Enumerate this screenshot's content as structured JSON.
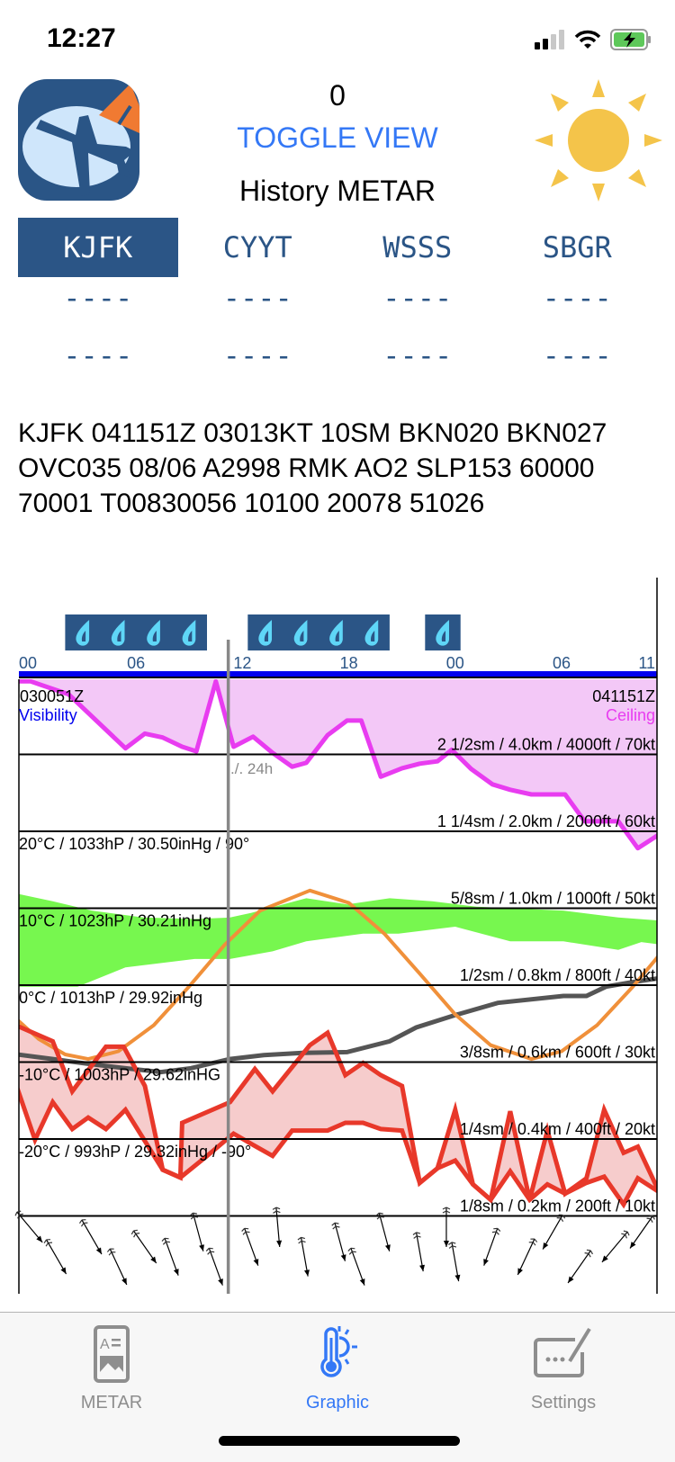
{
  "status_bar": {
    "time": "12:27",
    "signal_icon": "cellular-signal-icon",
    "wifi_icon": "wifi-icon",
    "battery_icon": "battery-charging-icon"
  },
  "header": {
    "counter": "0",
    "toggle_label": "TOGGLE VIEW",
    "title": "History METAR",
    "logo_icon": "airplane-globe-logo",
    "weather_icon": "sun-icon"
  },
  "stations": [
    {
      "code": "KJFK",
      "selected": true,
      "line1": "----",
      "line2": "----"
    },
    {
      "code": "CYYT",
      "selected": false,
      "line1": "----",
      "line2": "----"
    },
    {
      "code": "WSSS",
      "selected": false,
      "line1": "----",
      "line2": "----"
    },
    {
      "code": "SBGR",
      "selected": false,
      "line1": "----",
      "line2": "----"
    }
  ],
  "metar_text": "KJFK 041151Z 03013KT 10SM BKN020 BKN027 OVC035 08/06 A2998 RMK AO2 SLP153 60000 70001 T00830056 10100 20078 51026",
  "colors": {
    "accent": "#3478f6",
    "station": "#2b5586",
    "ceiling": "#e83cf0",
    "ceiling_fill": "#f3c8f7",
    "humidity": "#77f74f",
    "sun": "#f0903a",
    "pressure": "#555555",
    "temp": "#e8382a",
    "temp_fill": "#f6cccc",
    "rain_box": "#2b5586",
    "rain_drop": "#5fd6f7",
    "axis": "#0000ee",
    "cursor": "#888888"
  },
  "chart_data": {
    "type": "line",
    "x_unit": "hours UTC",
    "x_ticks": [
      {
        "h": 0,
        "label": "00"
      },
      {
        "h": 6,
        "label": "06"
      },
      {
        "h": 12,
        "label": "12"
      },
      {
        "h": 18,
        "label": "18"
      },
      {
        "h": 24,
        "label": "00"
      },
      {
        "h": 30,
        "label": "06"
      },
      {
        "h": 35,
        "label": "11"
      }
    ],
    "start_label": "030051Z",
    "end_label": "041151Z",
    "left_legend": "Visibility",
    "right_legend": "Ceiling",
    "cursor_label": "./. 24h",
    "cursor_h": 11.2,
    "rain_periods": [
      {
        "from": 2,
        "to": 10,
        "drops": 4
      },
      {
        "from": 12.3,
        "to": 20.3,
        "drops": 4
      },
      {
        "from": 22.3,
        "to": 24.3,
        "drops": 1
      }
    ],
    "right_scale": [
      {
        "level": 30,
        "label": "2 1/2sm / 4.0km / 4000ft / 70kt"
      },
      {
        "level": 20,
        "label": "1 1/4sm / 2.0km / 2000ft / 60kt"
      },
      {
        "level": 10,
        "label": "5/8sm / 1.0km / 1000ft / 50kt"
      },
      {
        "level": 0,
        "label": "1/2sm / 0.8km / 800ft / 40kt"
      },
      {
        "level": -10,
        "label": "3/8sm / 0.6km / 600ft / 30kt"
      },
      {
        "level": -20,
        "label": "1/4sm / 0.4km / 400ft / 20kt"
      },
      {
        "level": -30,
        "label": "1/8sm / 0.2km / 200ft / 10kt"
      }
    ],
    "left_scale": [
      {
        "level": 20,
        "label": "20°C / 1033hP / 30.50inHg / 90°"
      },
      {
        "level": 10,
        "label": "10°C / 1023hP / 30.21inHg"
      },
      {
        "level": 0,
        "label": "0°C / 1013hP / 29.92inHg"
      },
      {
        "level": -10,
        "label": "-10°C / 1003hP / 29.62inHG"
      },
      {
        "level": -20,
        "label": "-20°C / 993hP / 29.32inHg / -90°"
      }
    ],
    "y_unit": "°C",
    "ceiling": [
      [
        -0.7,
        39.5
      ],
      [
        0.05,
        39.5
      ],
      [
        2.2,
        37.8
      ],
      [
        5.4,
        30.8
      ],
      [
        6.5,
        32.7
      ],
      [
        7.5,
        32.2
      ],
      [
        8.6,
        31.0
      ],
      [
        9.4,
        30.4
      ],
      [
        10.5,
        39.5
      ],
      [
        11.5,
        31.0
      ],
      [
        12.6,
        32.3
      ],
      [
        13.7,
        30.2
      ],
      [
        14.8,
        28.4
      ],
      [
        15.6,
        28.9
      ],
      [
        16.8,
        32.5
      ],
      [
        17.9,
        34.4
      ],
      [
        18.7,
        34.4
      ],
      [
        19.8,
        27.1
      ],
      [
        21.0,
        28.2
      ],
      [
        22.0,
        28.8
      ],
      [
        23.0,
        29.1
      ],
      [
        23.8,
        30.6
      ],
      [
        24.9,
        28.1
      ],
      [
        26.1,
        26.1
      ],
      [
        27.1,
        25.4
      ],
      [
        28.3,
        24.8
      ],
      [
        30.2,
        24.8
      ],
      [
        31.3,
        21.3
      ],
      [
        32.5,
        21.3
      ],
      [
        33.2,
        21.3
      ],
      [
        34.3,
        17.8
      ],
      [
        35.5,
        19.6
      ]
    ],
    "humidity_upper": [
      [
        -0.7,
        11.9
      ],
      [
        1.3,
        10.9
      ],
      [
        3.5,
        9.7
      ],
      [
        6.4,
        8.8
      ],
      [
        9.3,
        8.6
      ],
      [
        11.3,
        8.8
      ],
      [
        12.5,
        9.4
      ],
      [
        15.6,
        11.3
      ],
      [
        17.9,
        10.5
      ],
      [
        20.3,
        11.3
      ],
      [
        22.7,
        10.9
      ],
      [
        25.2,
        10.2
      ],
      [
        30.1,
        9.7
      ],
      [
        33.2,
        8.8
      ],
      [
        35.5,
        8.4
      ]
    ],
    "humidity_lower": [
      [
        -0.7,
        -0.2
      ],
      [
        2.7,
        -0.2
      ],
      [
        5.4,
        2.3
      ],
      [
        9.3,
        3.4
      ],
      [
        11.3,
        3.4
      ],
      [
        13.7,
        4.4
      ],
      [
        15.6,
        5.7
      ],
      [
        18.8,
        6.7
      ],
      [
        20.8,
        6.7
      ],
      [
        24.0,
        7.6
      ],
      [
        27.1,
        5.7
      ],
      [
        30.1,
        5.7
      ],
      [
        33.2,
        4.6
      ],
      [
        34.5,
        5.6
      ],
      [
        35.5,
        5.3
      ]
    ],
    "sun_elevation": [
      [
        -0.7,
        -4.5
      ],
      [
        0.5,
        -7.0
      ],
      [
        2,
        -9.0
      ],
      [
        3.3,
        -9.6
      ],
      [
        5,
        -8.6
      ],
      [
        7,
        -5.2
      ],
      [
        9,
        -0.15
      ],
      [
        11,
        5.25
      ],
      [
        13,
        9.7
      ],
      [
        15.8,
        12.3
      ],
      [
        18,
        10.7
      ],
      [
        20,
        6.7
      ],
      [
        22,
        1.5
      ],
      [
        24,
        -3.8
      ],
      [
        26,
        -7.8
      ],
      [
        28.3,
        -9.6
      ],
      [
        30,
        -8.6
      ],
      [
        32,
        -5.2
      ],
      [
        34,
        -0.25
      ],
      [
        35.5,
        3.9
      ]
    ],
    "pressure": [
      [
        -0.7,
        -9.0
      ],
      [
        1.3,
        -9.6
      ],
      [
        3.2,
        -10.2
      ],
      [
        5.4,
        -10.8
      ],
      [
        7.4,
        -11.3
      ],
      [
        9.1,
        -10.8
      ],
      [
        11.3,
        -9.6
      ],
      [
        13.2,
        -9.1
      ],
      [
        15.4,
        -8.8
      ],
      [
        17.9,
        -8.7
      ],
      [
        20.3,
        -7.3
      ],
      [
        21.8,
        -5.5
      ],
      [
        24.0,
        -3.9
      ],
      [
        26.4,
        -2.3
      ],
      [
        30.1,
        -1.4
      ],
      [
        31.4,
        -1.4
      ],
      [
        32.5,
        -0.2
      ],
      [
        34.0,
        0.4
      ],
      [
        35.5,
        0.9
      ]
    ],
    "temperature": [
      [
        -0.7,
        -5.3
      ],
      [
        1.3,
        -7.3
      ],
      [
        2.4,
        -13.8
      ],
      [
        4.3,
        -8.0
      ],
      [
        5.3,
        -8.0
      ],
      [
        6.5,
        -13.1
      ],
      [
        7.5,
        -24.0
      ],
      [
        8.5,
        -25.0
      ],
      [
        8.6,
        -17.9
      ],
      [
        11.3,
        -15.2
      ],
      [
        12.7,
        -10.9
      ],
      [
        13.7,
        -13.8
      ],
      [
        15.8,
        -7.8
      ],
      [
        16.8,
        -6.2
      ],
      [
        17.8,
        -11.7
      ],
      [
        18.8,
        -10.1
      ],
      [
        19.8,
        -11.7
      ],
      [
        21.0,
        -13.1
      ],
      [
        22.0,
        -25.7
      ],
      [
        23.0,
        -23.8
      ],
      [
        24.0,
        -16.2
      ],
      [
        25.0,
        -25.9
      ],
      [
        26.0,
        -27.9
      ],
      [
        27.1,
        -16.4
      ],
      [
        28.2,
        -27.9
      ],
      [
        29.2,
        -18.9
      ],
      [
        30.2,
        -27.1
      ],
      [
        31.4,
        -25.1
      ],
      [
        32.4,
        -16.2
      ],
      [
        33.5,
        -21.8
      ],
      [
        34.3,
        -21.0
      ],
      [
        35.5,
        -26.9
      ]
    ],
    "dewpoint": [
      [
        -0.7,
        -13.4
      ],
      [
        0.3,
        -20.1
      ],
      [
        1.3,
        -15.2
      ],
      [
        2.4,
        -18.7
      ],
      [
        3.3,
        -17.2
      ],
      [
        4.3,
        -18.7
      ],
      [
        5.4,
        -16.2
      ],
      [
        7.5,
        -24.0
      ],
      [
        8.5,
        -25.0
      ],
      [
        10.0,
        -22.2
      ],
      [
        11.5,
        -19.3
      ],
      [
        12.7,
        -20.9
      ],
      [
        13.7,
        -22.2
      ],
      [
        14.8,
        -18.9
      ],
      [
        16.8,
        -18.9
      ],
      [
        17.8,
        -17.9
      ],
      [
        18.8,
        -17.9
      ],
      [
        19.8,
        -18.7
      ],
      [
        21.0,
        -18.9
      ],
      [
        22.0,
        -25.7
      ],
      [
        23.0,
        -23.8
      ],
      [
        24.0,
        -22.8
      ],
      [
        25.0,
        -25.9
      ],
      [
        26.0,
        -27.9
      ],
      [
        27.1,
        -24.2
      ],
      [
        28.2,
        -27.9
      ],
      [
        29.2,
        -25.9
      ],
      [
        30.2,
        -27.1
      ],
      [
        31.4,
        -25.7
      ],
      [
        32.4,
        -24.9
      ],
      [
        33.5,
        -28.5
      ],
      [
        34.3,
        -25.1
      ],
      [
        35.5,
        -26.9
      ]
    ],
    "wind": [
      [
        0,
        320,
        12
      ],
      [
        1.5,
        330,
        6
      ],
      [
        3.5,
        330,
        10
      ],
      [
        5,
        335,
        4
      ],
      [
        6.5,
        325,
        8
      ],
      [
        8,
        340,
        6
      ],
      [
        9.5,
        345,
        11
      ],
      [
        10.5,
        340,
        4
      ],
      [
        12.5,
        340,
        8
      ],
      [
        14,
        355,
        12
      ],
      [
        15.5,
        350,
        6
      ],
      [
        17.5,
        345,
        9
      ],
      [
        18.5,
        340,
        4
      ],
      [
        20,
        345,
        11
      ],
      [
        22,
        350,
        7
      ],
      [
        23.5,
        360,
        12
      ],
      [
        24,
        350,
        5
      ],
      [
        26,
        20,
        8
      ],
      [
        28,
        25,
        6
      ],
      [
        29.5,
        30,
        11
      ],
      [
        31,
        35,
        4
      ],
      [
        33,
        40,
        8
      ],
      [
        34.5,
        35,
        11
      ]
    ]
  },
  "tab_bar": {
    "items": [
      {
        "label": "METAR",
        "icon": "metar-document-icon",
        "active": false
      },
      {
        "label": "Graphic",
        "icon": "thermometer-sun-icon",
        "active": true
      },
      {
        "label": "Settings",
        "icon": "keyboard-pencil-icon",
        "active": false
      }
    ]
  }
}
